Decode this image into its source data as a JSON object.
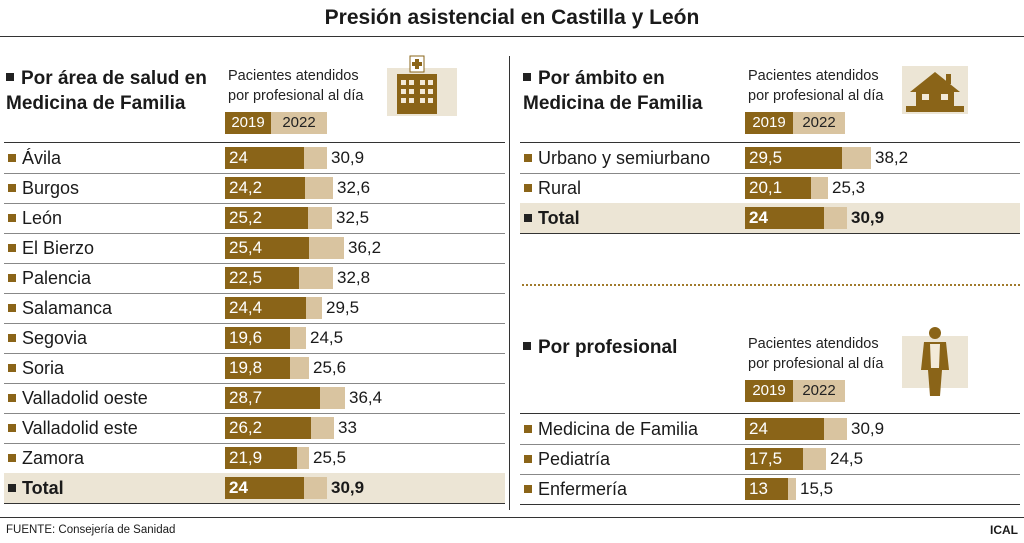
{
  "title": "Presión asistencial en Castilla y León",
  "colors": {
    "y2019": "#8a6418",
    "y2022": "#d9c4a0",
    "total_bg": "#ece5d5"
  },
  "unit_label_line1": "Pacientes atendidos",
  "unit_label_line2": "por profesional al día",
  "year_labels": [
    "2019",
    "2022"
  ],
  "footer": {
    "source": "FUENTE: Consejería de Sanidad",
    "brand": "ICAL"
  },
  "icons": [
    "hospital-icon",
    "house-icon",
    "doctor-icon"
  ],
  "chart_data": [
    {
      "type": "bar",
      "title_line1": "Por área de salud en",
      "title_line2": "Medicina de Familia",
      "categories": [
        "Ávila",
        "Burgos",
        "León",
        "El Bierzo",
        "Palencia",
        "Salamanca",
        "Segovia",
        "Soria",
        "Valladolid oeste",
        "Valladolid este",
        "Zamora",
        "Total"
      ],
      "series": [
        {
          "name": "2019",
          "values": [
            "24",
            "24,2",
            "25,2",
            "25,4",
            "22,5",
            "24,4",
            "19,6",
            "19,8",
            "28,7",
            "26,2",
            "21,9",
            "24"
          ]
        },
        {
          "name": "2022",
          "values": [
            "30,9",
            "32,6",
            "32,5",
            "36,2",
            "32,8",
            "29,5",
            "24,5",
            "25,6",
            "36,4",
            "33",
            "25,5",
            "30,9"
          ]
        }
      ]
    },
    {
      "type": "bar",
      "title_line1": "Por ámbito en",
      "title_line2": "Medicina de Familia",
      "categories": [
        "Urbano y semiurbano",
        "Rural",
        "Total"
      ],
      "series": [
        {
          "name": "2019",
          "values": [
            "29,5",
            "20,1",
            "24"
          ]
        },
        {
          "name": "2022",
          "values": [
            "38,2",
            "25,3",
            "30,9"
          ]
        }
      ]
    },
    {
      "type": "bar",
      "title_line1": "Por profesional",
      "title_line2": "",
      "categories": [
        "Medicina de Familia",
        "Pediatría",
        "Enfermería"
      ],
      "series": [
        {
          "name": "2019",
          "values": [
            "24",
            "17,5",
            "13"
          ]
        },
        {
          "name": "2022",
          "values": [
            "30,9",
            "24,5",
            "15,5"
          ]
        }
      ]
    }
  ]
}
